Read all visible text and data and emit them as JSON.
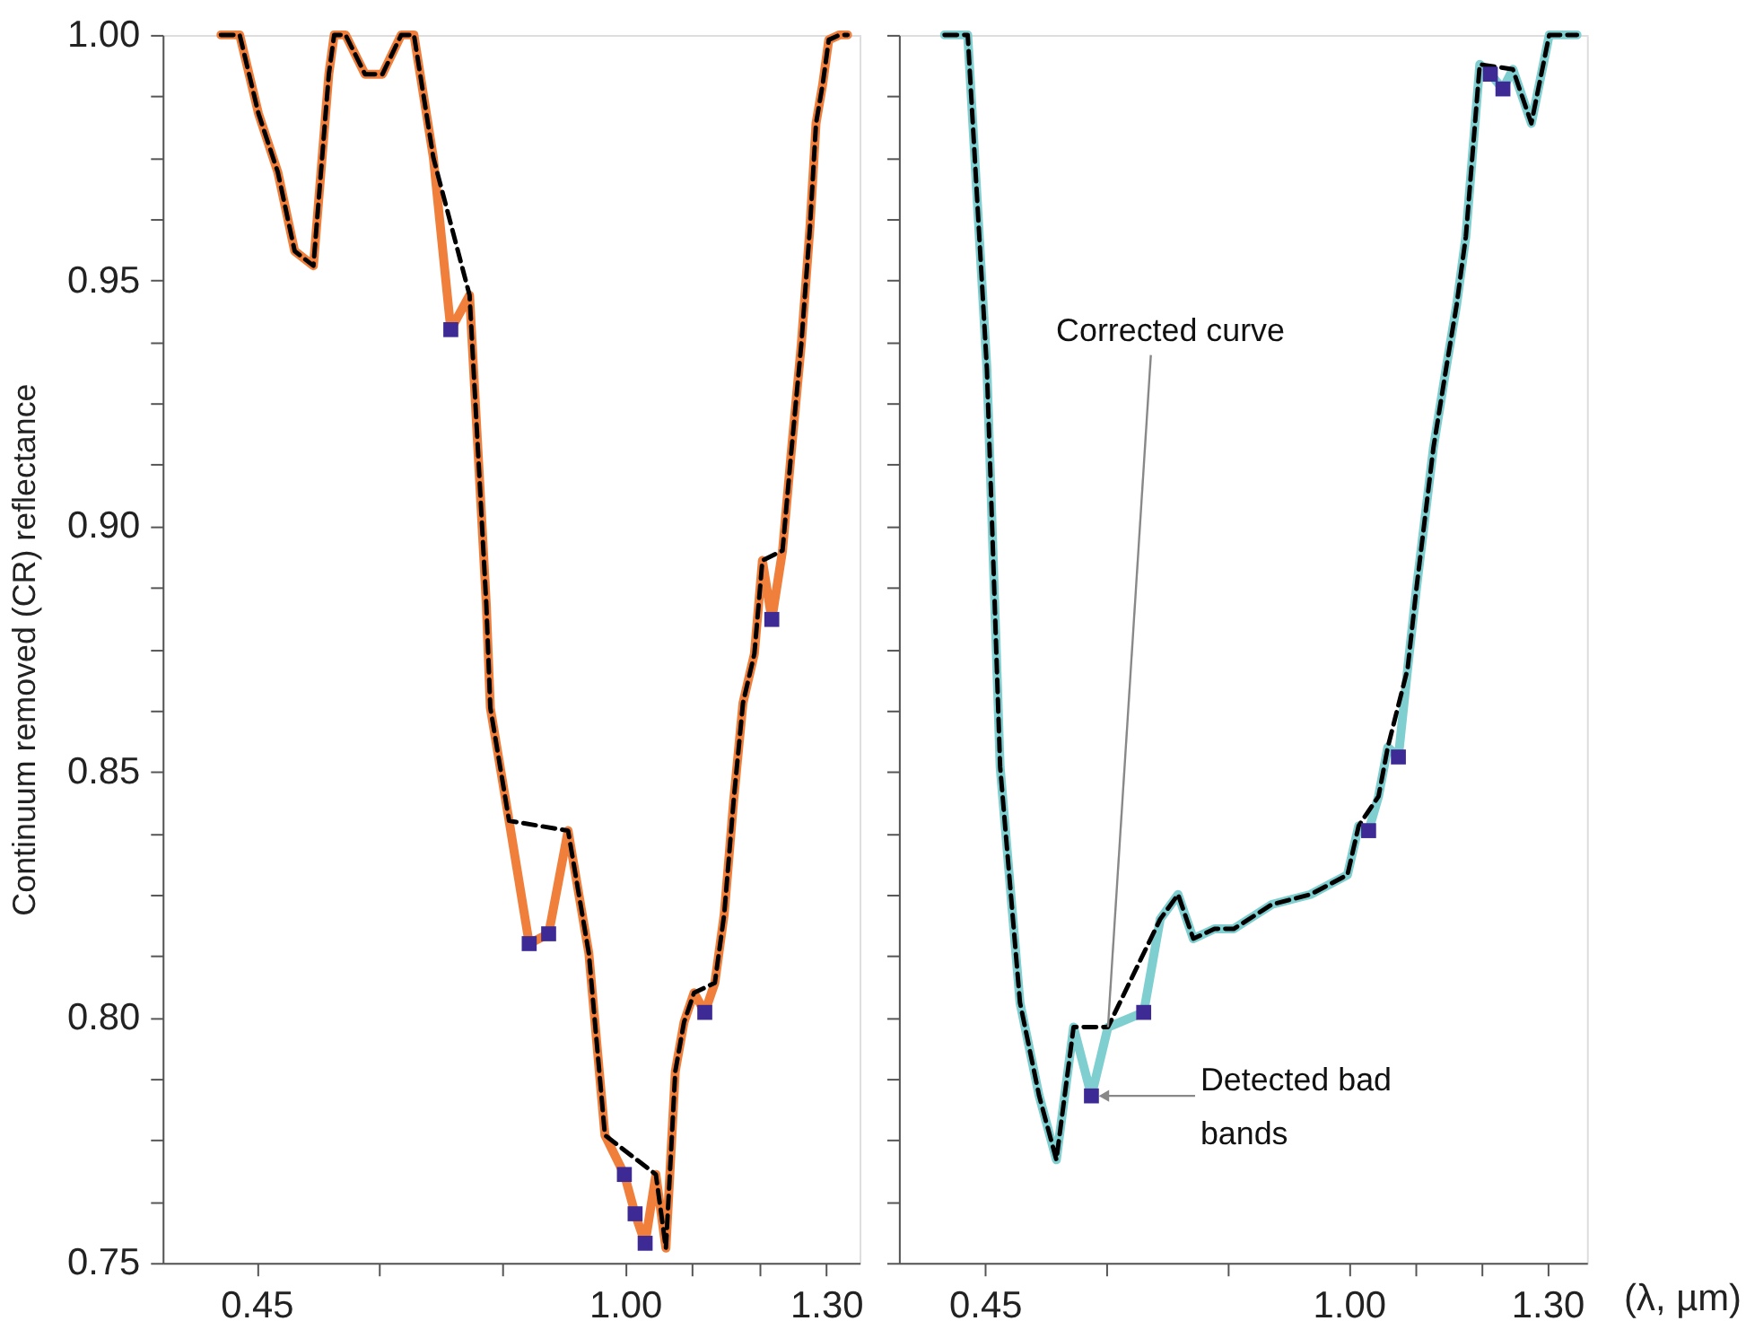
{
  "chart_data": [
    {
      "type": "line",
      "ylabel": "Continuum removed (CR) reflectance",
      "grid": false,
      "xlim": [
        0.31,
        1.35
      ],
      "xticks": [
        0.45,
        {
          "value": 0.633,
          "label": null
        },
        {
          "value": 0.817,
          "label": null
        },
        {
          "value": 1.0,
          "label": "1.00"
        },
        {
          "value": 1.1,
          "label": null
        },
        {
          "value": 1.2,
          "label": null
        },
        {
          "value": 1.3,
          "label": "1.30"
        }
      ],
      "ylim": [
        0.75,
        1.0
      ],
      "yticks": [
        0.75,
        {
          "value": 0.7625,
          "label": null
        },
        {
          "value": 0.775,
          "label": null
        },
        {
          "value": 0.7875,
          "label": null
        },
        {
          "value": 0.8,
          "label": "0.80"
        },
        {
          "value": 0.8125,
          "label": null
        },
        {
          "value": 0.825,
          "label": null
        },
        {
          "value": 0.8375,
          "label": null
        },
        0.85,
        {
          "value": 0.8625,
          "label": null
        },
        {
          "value": 0.875,
          "label": null
        },
        {
          "value": 0.8875,
          "label": null
        },
        {
          "value": 0.9,
          "label": "0.90"
        },
        {
          "value": 0.9125,
          "label": null
        },
        {
          "value": 0.925,
          "label": null
        },
        {
          "value": 0.9375,
          "label": null
        },
        0.95,
        {
          "value": 0.9625,
          "label": null
        },
        {
          "value": 0.975,
          "label": null
        },
        {
          "value": 0.9875,
          "label": null
        },
        {
          "value": 1.0,
          "label": "1.00"
        }
      ],
      "series": [
        {
          "type": "line",
          "color": "#f07f3c",
          "x": [
            0.397,
            0.425,
            0.453,
            0.482,
            0.507,
            0.535,
            0.558,
            0.566,
            0.583,
            0.612,
            0.638,
            0.666,
            0.685,
            0.714,
            0.74,
            0.768,
            0.793,
            0.799,
            0.827,
            0.857,
            0.886,
            0.915,
            0.946,
            0.97,
            0.999,
            1.015,
            1.03,
            1.046,
            1.061,
            1.075,
            1.088,
            1.103,
            1.119,
            1.134,
            1.148,
            1.162,
            1.176,
            1.193,
            1.205,
            1.219,
            1.235,
            1.248,
            1.263,
            1.276,
            1.285,
            1.295,
            1.304,
            1.32,
            1.332
          ],
          "values": [
            1.0,
            1.0,
            0.984,
            0.972,
            0.956,
            0.953,
            0.992,
            1.0,
            1.0,
            0.992,
            0.992,
            1.0,
            1.0,
            0.975,
            0.94,
            0.947,
            0.884,
            0.863,
            0.84,
            0.815,
            0.817,
            0.838,
            0.813,
            0.776,
            0.768,
            0.76,
            0.754,
            0.768,
            0.753,
            0.789,
            0.799,
            0.805,
            0.801,
            0.807,
            0.821,
            0.844,
            0.864,
            0.874,
            0.893,
            0.881,
            0.895,
            0.915,
            0.937,
            0.961,
            0.982,
            0.99,
            0.999,
            1.0,
            1.0
          ]
        },
        {
          "type": "line",
          "color": "#000000",
          "line_style": "dashed",
          "x": [
            0.397,
            0.425,
            0.453,
            0.482,
            0.507,
            0.535,
            0.558,
            0.566,
            0.583,
            0.612,
            0.638,
            0.666,
            0.685,
            0.714,
            0.768,
            0.793,
            0.799,
            0.827,
            0.915,
            0.946,
            0.97,
            1.046,
            1.061,
            1.075,
            1.088,
            1.103,
            1.134,
            1.148,
            1.162,
            1.176,
            1.193,
            1.205,
            1.235,
            1.248,
            1.263,
            1.276,
            1.285,
            1.295,
            1.304,
            1.32,
            1.332
          ],
          "values": [
            1.0,
            1.0,
            0.984,
            0.972,
            0.956,
            0.953,
            0.992,
            1.0,
            1.0,
            0.992,
            0.992,
            1.0,
            1.0,
            0.975,
            0.947,
            0.884,
            0.863,
            0.84,
            0.838,
            0.813,
            0.776,
            0.768,
            0.753,
            0.789,
            0.799,
            0.805,
            0.807,
            0.821,
            0.844,
            0.864,
            0.874,
            0.893,
            0.895,
            0.915,
            0.937,
            0.961,
            0.982,
            0.99,
            0.999,
            1.0,
            1.0
          ]
        },
        {
          "type": "scatter",
          "marker": "square",
          "color": "#3d2a94",
          "x": [
            0.74,
            0.857,
            0.886,
            0.999,
            1.015,
            1.03,
            1.119,
            1.219
          ],
          "values": [
            0.94,
            0.815,
            0.817,
            0.768,
            0.76,
            0.754,
            0.801,
            0.881
          ]
        }
      ]
    },
    {
      "type": "line",
      "xlabel": "(λ, µm)",
      "grid": false,
      "tick_labels": "x",
      "xlim": [
        0.32,
        1.36
      ],
      "xticks": [
        0.45,
        {
          "value": 0.633,
          "label": null
        },
        {
          "value": 0.817,
          "label": null
        },
        {
          "value": 1.0,
          "label": "1.00"
        },
        {
          "value": 1.1,
          "label": null
        },
        {
          "value": 1.2,
          "label": null
        },
        {
          "value": 1.3,
          "label": "1.30"
        }
      ],
      "ylim": [
        0.75,
        1.0
      ],
      "yticks": [
        0.75,
        {
          "value": 0.7625,
          "label": null
        },
        {
          "value": 0.775,
          "label": null
        },
        {
          "value": 0.7875,
          "label": null
        },
        {
          "value": 0.8,
          "label": "0.80"
        },
        {
          "value": 0.8125,
          "label": null
        },
        {
          "value": 0.825,
          "label": null
        },
        {
          "value": 0.8375,
          "label": null
        },
        0.85,
        {
          "value": 0.8625,
          "label": null
        },
        {
          "value": 0.875,
          "label": null
        },
        {
          "value": 0.8875,
          "label": null
        },
        {
          "value": 0.9,
          "label": "0.90"
        },
        {
          "value": 0.9125,
          "label": null
        },
        {
          "value": 0.925,
          "label": null
        },
        {
          "value": 0.9375,
          "label": null
        },
        0.95,
        {
          "value": 0.9625,
          "label": null
        },
        {
          "value": 0.975,
          "label": null
        },
        {
          "value": 0.9875,
          "label": null
        },
        {
          "value": 1.0,
          "label": "1.00"
        }
      ],
      "annotations": [
        {
          "text": "Corrected curve",
          "x": 0.636,
          "y": 0.798
        },
        {
          "text": "Detected bad bands",
          "x": 0.611,
          "y": 0.784
        }
      ],
      "series": [
        {
          "type": "line",
          "color": "#80cfd0",
          "x": [
            0.389,
            0.424,
            0.453,
            0.473,
            0.503,
            0.532,
            0.558,
            0.584,
            0.611,
            0.636,
            0.69,
            0.715,
            0.742,
            0.765,
            0.797,
            0.826,
            0.884,
            0.942,
            0.998,
            1.015,
            1.03,
            1.045,
            1.059,
            1.075,
            1.089,
            1.102,
            1.128,
            1.147,
            1.163,
            1.177,
            1.198,
            1.214,
            1.233,
            1.248,
            1.276,
            1.303,
            1.326,
            1.345
          ],
          "values": [
            1.0,
            1.0,
            0.932,
            0.851,
            0.803,
            0.784,
            0.771,
            0.798,
            0.784,
            0.798,
            0.801,
            0.82,
            0.825,
            0.816,
            0.818,
            0.818,
            0.823,
            0.825,
            0.829,
            0.839,
            0.838,
            0.845,
            0.855,
            0.853,
            0.871,
            0.887,
            0.916,
            0.932,
            0.945,
            0.959,
            0.994,
            0.992,
            0.989,
            0.993,
            0.982,
            1.0,
            1.0,
            1.0
          ]
        },
        {
          "type": "line",
          "color": "#000000",
          "line_style": "dashed",
          "x": [
            0.389,
            0.424,
            0.453,
            0.473,
            0.503,
            0.532,
            0.558,
            0.584,
            0.636,
            0.715,
            0.742,
            0.765,
            0.797,
            0.826,
            0.884,
            0.942,
            0.998,
            1.015,
            1.045,
            1.059,
            1.089,
            1.102,
            1.128,
            1.147,
            1.163,
            1.177,
            1.198,
            1.248,
            1.276,
            1.303,
            1.326,
            1.345
          ],
          "values": [
            1.0,
            1.0,
            0.932,
            0.851,
            0.803,
            0.784,
            0.771,
            0.798,
            0.798,
            0.82,
            0.825,
            0.816,
            0.818,
            0.818,
            0.823,
            0.825,
            0.829,
            0.839,
            0.845,
            0.855,
            0.871,
            0.887,
            0.916,
            0.932,
            0.945,
            0.959,
            0.994,
            0.993,
            0.982,
            1.0,
            1.0,
            1.0
          ]
        },
        {
          "type": "scatter",
          "marker": "square",
          "color": "#3d2a94",
          "x": [
            0.611,
            0.69,
            1.03,
            1.075,
            1.214,
            1.233
          ],
          "values": [
            0.784,
            0.801,
            0.838,
            0.853,
            0.992,
            0.989
          ]
        }
      ]
    }
  ]
}
